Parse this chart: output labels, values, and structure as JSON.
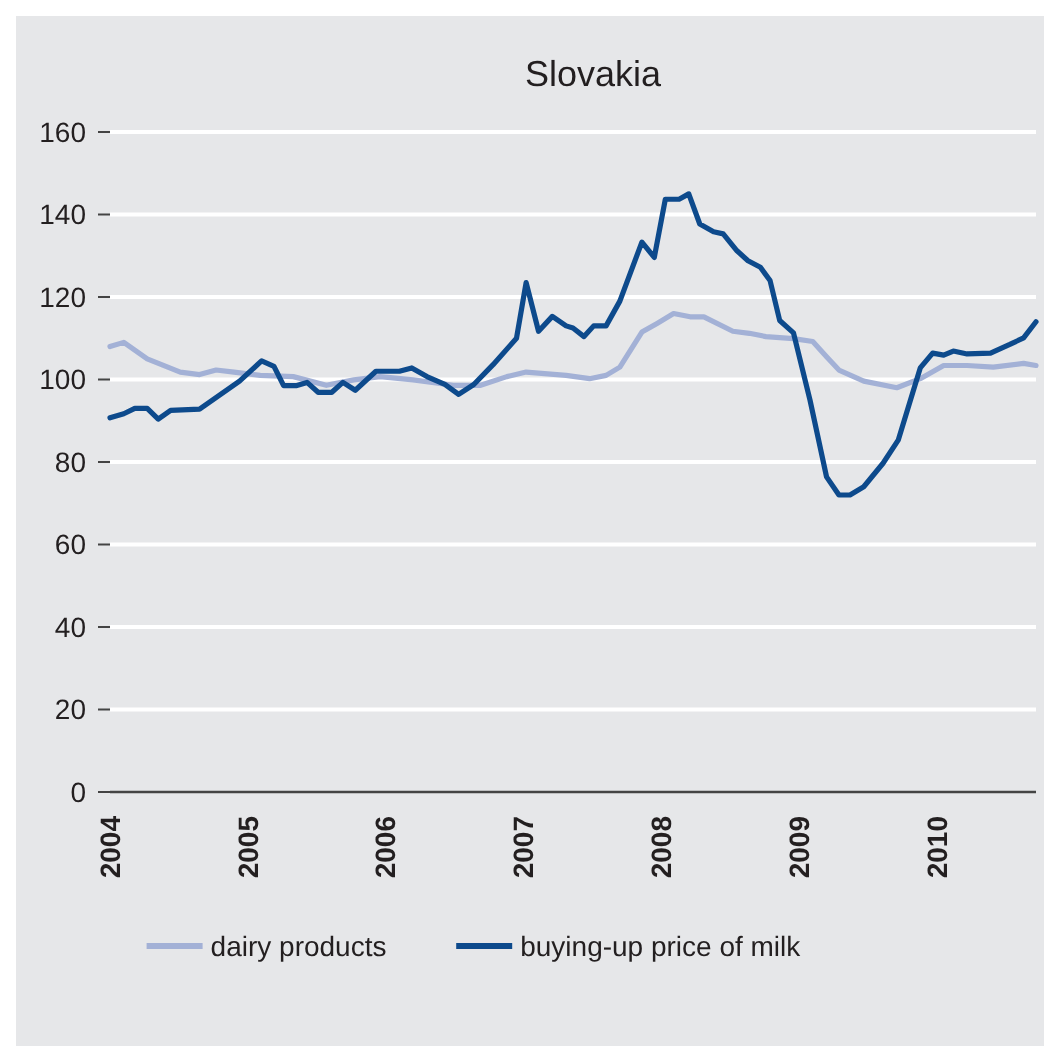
{
  "chart_data": {
    "type": "line",
    "title": "Slovakia",
    "xlim": [
      2004,
      2010.72
    ],
    "xticks": [
      2004,
      2005,
      2006,
      2007,
      2008,
      2009,
      2010
    ],
    "ylim": [
      0,
      160
    ],
    "yticks": [
      0,
      20,
      40,
      60,
      80,
      100,
      120,
      140,
      160
    ],
    "grid": "y",
    "legend": "bottom",
    "line_style": "solid",
    "marker": "none",
    "series": [
      {
        "name": "dairy products",
        "color": "#a3b1d6",
        "x": [
          2004,
          2004.1,
          2004.27,
          2004.51,
          2004.65,
          2004.77,
          2004.9,
          2005.09,
          2005.33,
          2005.57,
          2005.77,
          2005.96,
          2006.2,
          2006.49,
          2006.69,
          2006.88,
          2007.02,
          2007.31,
          2007.48,
          2007.6,
          2007.7,
          2007.86,
          2007.97,
          2008.09,
          2008.21,
          2008.31,
          2008.52,
          2008.64,
          2008.76,
          2008.96,
          2009.1,
          2009.2,
          2009.29,
          2009.47,
          2009.71,
          2009.88,
          2010.05,
          2010.22,
          2010.41,
          2010.63,
          2010.72
        ],
        "values": [
          108,
          109,
          105,
          101.8,
          101.2,
          102.3,
          101.8,
          101,
          100.7,
          98.6,
          99.9,
          100.7,
          99.9,
          98.6,
          98.6,
          100.7,
          101.8,
          101,
          100.2,
          101,
          103,
          111.5,
          113.6,
          116,
          115.2,
          115.2,
          111.7,
          111.2,
          110.4,
          109.9,
          109.2,
          105.5,
          102.3,
          99.6,
          98,
          100.2,
          103.4,
          103.4,
          103,
          103.9,
          103.4
        ]
      },
      {
        "name": "buying-up price of milk",
        "color": "#0d4a8c",
        "x": [
          2004,
          2004.1,
          2004.18,
          2004.27,
          2004.35,
          2004.44,
          2004.65,
          2004.94,
          2005.1,
          2005.19,
          2005.26,
          2005.35,
          2005.43,
          2005.51,
          2005.61,
          2005.69,
          2005.78,
          2005.93,
          2006.1,
          2006.19,
          2006.3,
          2006.43,
          2006.53,
          2006.64,
          2006.78,
          2006.95,
          2007.02,
          2007.11,
          2007.21,
          2007.31,
          2007.36,
          2007.44,
          2007.51,
          2007.6,
          2007.7,
          2007.86,
          2007.95,
          2008.03,
          2008.13,
          2008.2,
          2008.28,
          2008.38,
          2008.45,
          2008.55,
          2008.63,
          2008.72,
          2008.79,
          2008.86,
          2008.96,
          2009.08,
          2009.2,
          2009.29,
          2009.37,
          2009.47,
          2009.61,
          2009.72,
          2009.88,
          2009.97,
          2010.05,
          2010.12,
          2010.22,
          2010.39,
          2010.53,
          2010.63,
          2010.72
        ],
        "values": [
          90.7,
          91.7,
          93,
          93,
          90.4,
          92.5,
          92.8,
          99.6,
          104.5,
          103.2,
          98.5,
          98.5,
          99.3,
          96.9,
          96.9,
          99.3,
          97.4,
          102,
          102,
          102.8,
          100.7,
          98.8,
          96.4,
          98.8,
          103.6,
          110,
          123.5,
          111.7,
          115.3,
          113,
          112.5,
          110.4,
          113,
          113,
          119,
          133.3,
          129.6,
          143.7,
          143.7,
          145,
          137.7,
          135.8,
          135.3,
          131.2,
          128.8,
          127.2,
          124,
          114.3,
          111.3,
          95,
          76.4,
          72,
          72,
          74,
          79.7,
          85.3,
          102.8,
          106.4,
          105.9,
          106.9,
          106.2,
          106.4,
          108.5,
          110.1,
          114
        ]
      }
    ]
  }
}
